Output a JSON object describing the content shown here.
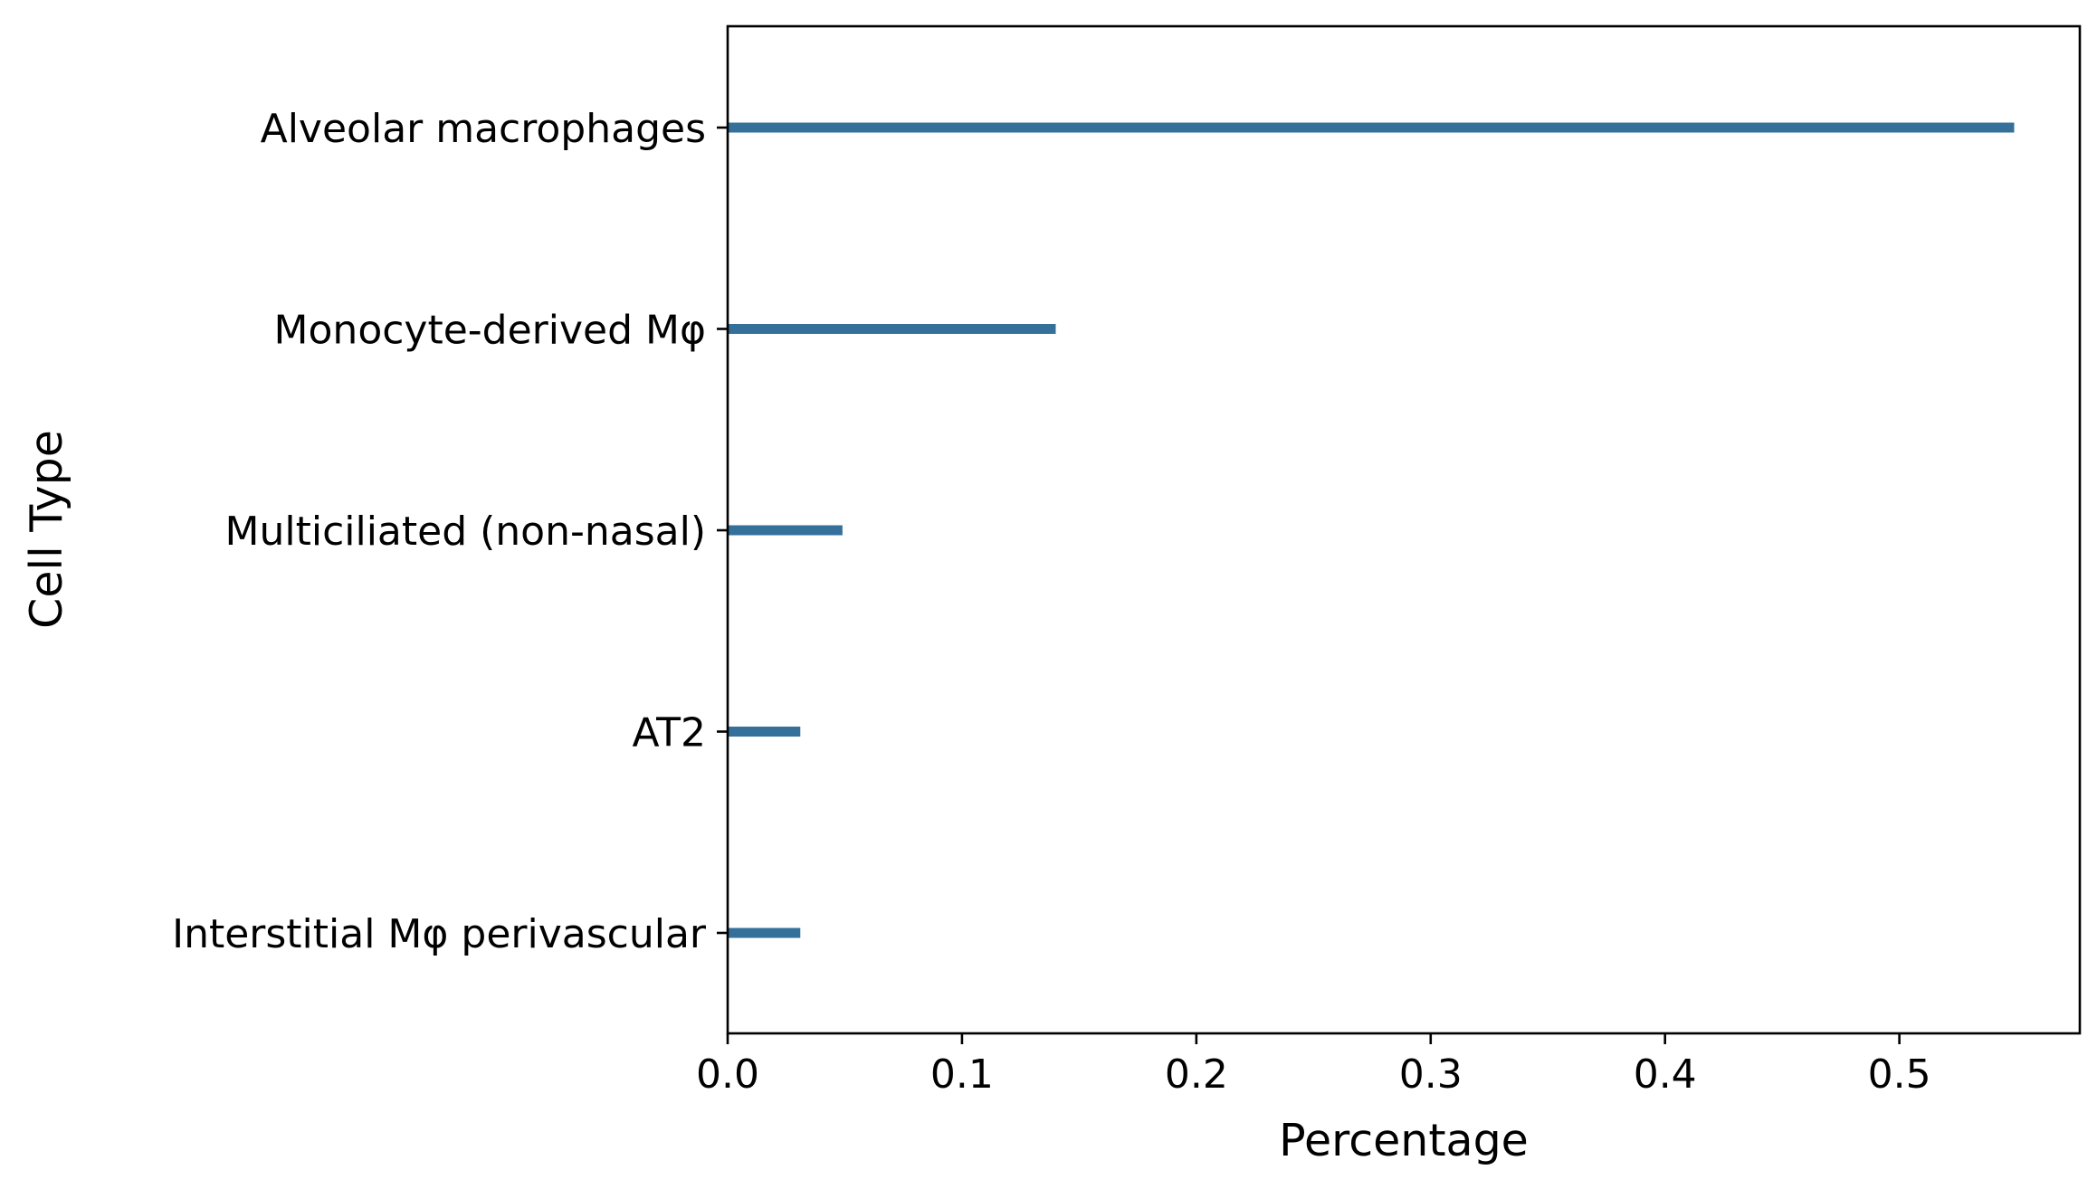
{
  "chart_data": {
    "type": "bar",
    "orientation": "horizontal",
    "categories": [
      "Alveolar macrophages",
      "Monocyte-derived Mφ",
      "Multiciliated (non-nasal)",
      "AT2",
      "Interstitial Mφ perivascular"
    ],
    "values": [
      0.549,
      0.14,
      0.049,
      0.031,
      0.031
    ],
    "xlabel": "Percentage",
    "ylabel": "Cell Type",
    "xlim": [
      0,
      0.577
    ],
    "xticks": [
      "0.0",
      "0.1",
      "0.2",
      "0.3",
      "0.4",
      "0.5"
    ],
    "grid": false,
    "bar_color": "#35709b"
  }
}
